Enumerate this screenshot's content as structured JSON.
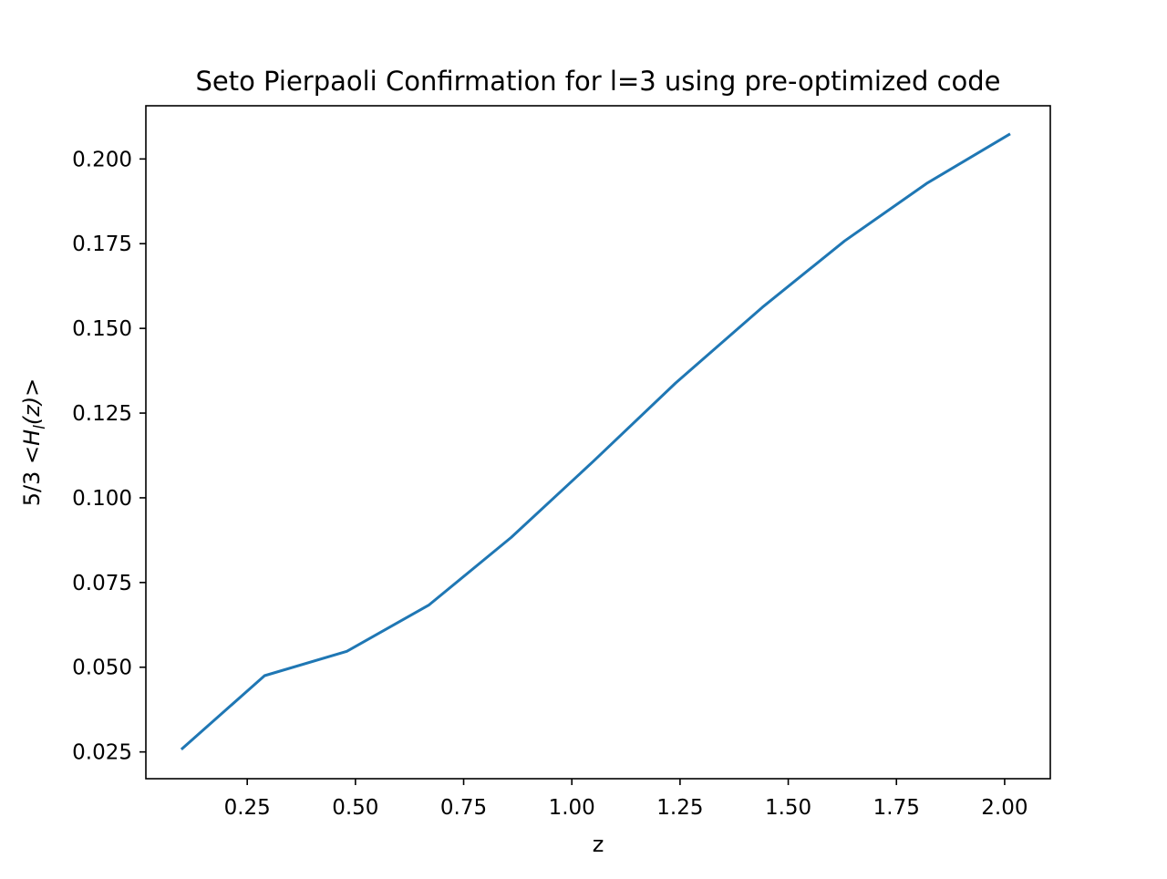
{
  "chart_data": {
    "type": "line",
    "title": "Seto Pierpaoli Confirmation for l=3 using pre-optimized code",
    "xlabel": "z",
    "ylabel": {
      "prefix": "5/3",
      "open": "<",
      "var": "H",
      "sub": "l",
      "arg": "(z)",
      "close": ">"
    },
    "xlim": [
      0.0158,
      2.1055
    ],
    "ylim": [
      0.0171,
      0.2157
    ],
    "xticks": [
      0.25,
      0.5,
      0.75,
      1.0,
      1.25,
      1.5,
      1.75,
      2.0
    ],
    "xtick_labels": [
      "0.25",
      "0.50",
      "0.75",
      "1.00",
      "1.25",
      "1.50",
      "1.75",
      "2.00"
    ],
    "yticks": [
      0.025,
      0.05,
      0.075,
      0.1,
      0.125,
      0.15,
      0.175,
      0.2
    ],
    "ytick_labels": [
      "0.025",
      "0.050",
      "0.075",
      "0.100",
      "0.125",
      "0.150",
      "0.175",
      "0.200"
    ],
    "grid": false,
    "series": [
      {
        "color": "#1f77b4",
        "x": [
          0.1,
          0.29,
          0.48,
          0.67,
          0.86,
          1.05,
          1.24,
          1.44,
          1.63,
          1.82,
          2.01
        ],
        "y": [
          0.026,
          0.0475,
          0.0547,
          0.0684,
          0.0883,
          0.1108,
          0.1339,
          0.1562,
          0.1758,
          0.1928,
          0.2072
        ]
      }
    ]
  }
}
